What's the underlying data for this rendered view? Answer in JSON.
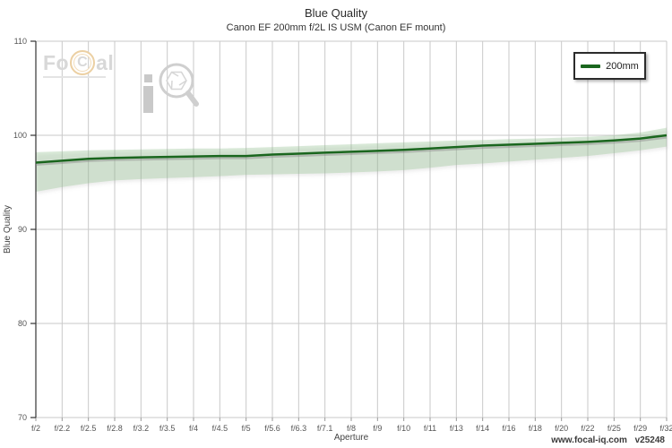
{
  "header": {
    "title": "Blue Quality",
    "subtitle": "Canon EF 200mm f/2L IS USM (Canon EF mount)"
  },
  "watermark": {
    "brand_prefix": "Fo",
    "brand_ring_letter": "C",
    "brand_suffix": "al",
    "iq_letter": "i",
    "magnifier_icon": "magnifier-aperture-icon"
  },
  "legend": {
    "items": [
      {
        "label": "200mm",
        "color": "#1a661e"
      }
    ]
  },
  "footer": {
    "site": "www.focal-iq.com",
    "version": "v25248"
  },
  "colors": {
    "grid": "#c9c9c9",
    "axis_spine": "#333333",
    "tick_text": "#555555",
    "axis_label_text": "#444444",
    "line": "#1a661e",
    "line_shadow": "#8a8a8a",
    "band_fill": "#8fbf8c",
    "watermark_gray": "#d4d4d4",
    "watermark_orange": "#ecd0a3"
  },
  "chart_data": {
    "type": "line",
    "title": "Blue Quality",
    "subtitle": "Canon EF 200mm f/2L IS USM (Canon EF mount)",
    "xlabel": "Aperture",
    "ylabel": "Blue Quality",
    "ylim": [
      70,
      110
    ],
    "yticks": [
      70,
      80,
      90,
      100,
      110
    ],
    "grid": true,
    "legend_position": "top-right",
    "categories": [
      "f/2",
      "f/2.2",
      "f/2.5",
      "f/2.8",
      "f/3.2",
      "f/3.5",
      "f/4",
      "f/4.5",
      "f/5",
      "f/5.6",
      "f/6.3",
      "f/7.1",
      "f/8",
      "f/9",
      "f/10",
      "f/11",
      "f/13",
      "f/14",
      "f/16",
      "f/18",
      "f/20",
      "f/22",
      "f/25",
      "f/29",
      "f/32"
    ],
    "series": [
      {
        "name": "200mm",
        "color": "#1a661e",
        "values": [
          97.1,
          97.3,
          97.5,
          97.6,
          97.65,
          97.7,
          97.75,
          97.8,
          97.8,
          97.95,
          98.05,
          98.15,
          98.25,
          98.35,
          98.45,
          98.6,
          98.75,
          98.9,
          99.0,
          99.1,
          99.2,
          99.3,
          99.45,
          99.65,
          100.0
        ]
      }
    ],
    "band": {
      "name": "confidence-band",
      "color": "#8fbf8c",
      "upper": [
        98.2,
        98.3,
        98.4,
        98.45,
        98.5,
        98.55,
        98.6,
        98.6,
        98.65,
        98.75,
        98.85,
        98.95,
        99.05,
        99.15,
        99.25,
        99.35,
        99.45,
        99.5,
        99.6,
        99.65,
        99.75,
        99.85,
        100.0,
        100.3,
        100.8
      ],
      "lower": [
        94.0,
        94.5,
        94.9,
        95.2,
        95.35,
        95.45,
        95.55,
        95.65,
        95.8,
        95.85,
        95.9,
        95.95,
        96.05,
        96.15,
        96.3,
        96.55,
        96.85,
        97.0,
        97.2,
        97.4,
        97.6,
        97.8,
        98.1,
        98.4,
        98.8
      ]
    }
  }
}
